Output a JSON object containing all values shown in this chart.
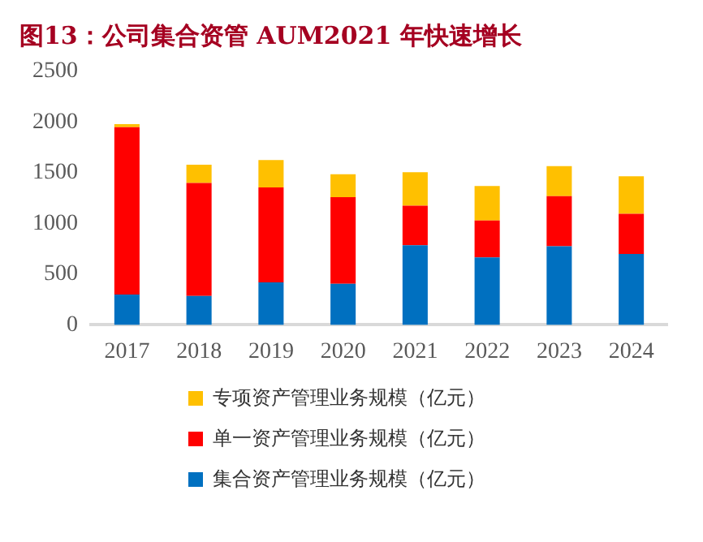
{
  "chart_data": {
    "type": "bar",
    "title": "图13：公司集合资管 AUM2021 年快速增长",
    "categories": [
      "2017",
      "2018",
      "2019",
      "2020",
      "2021",
      "2022",
      "2023",
      "2024"
    ],
    "stacked": true,
    "series": [
      {
        "name": "集合资产管理业务规模（亿元）",
        "color": "#0070c0",
        "values": [
          300,
          285,
          420,
          405,
          785,
          665,
          775,
          700
        ]
      },
      {
        "name": "单一资产管理业务规模（亿元）",
        "color": "#ff0000",
        "values": [
          1650,
          1115,
          935,
          855,
          390,
          365,
          495,
          395
        ]
      },
      {
        "name": "专项资产管理业务规模（亿元）",
        "color": "#ffc000",
        "values": [
          30,
          180,
          270,
          225,
          330,
          340,
          295,
          370
        ]
      }
    ],
    "ylim": [
      0,
      2500
    ],
    "yticks": [
      0,
      500,
      1000,
      1500,
      2000,
      2500
    ],
    "grid": false,
    "legend": "bottom"
  }
}
